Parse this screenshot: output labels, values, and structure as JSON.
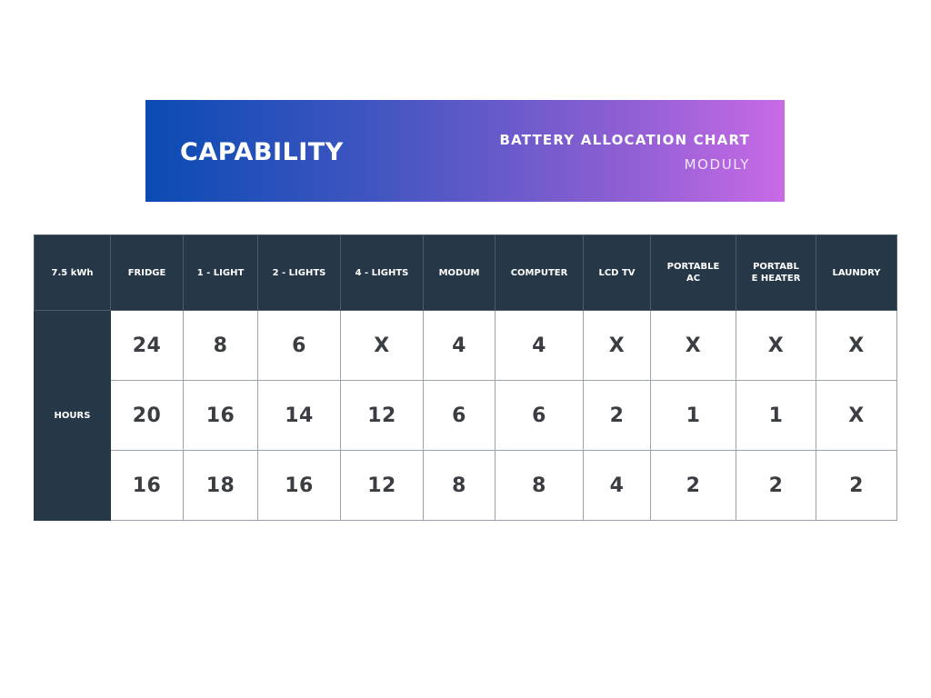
{
  "banner": {
    "title": "CAPABILITY",
    "subtitle": "BATTERY ALLOCATION CHART",
    "brand": "MODULY"
  },
  "table": {
    "corner_label": "7.5 kWh",
    "columns": [
      "FRIDGE",
      "1 - LIGHT",
      "2 - LIGHTS",
      "4 - LIGHTS",
      "MODUM",
      "COMPUTER",
      "LCD TV",
      "PORTABLE AC",
      "PORTABL E HEATER",
      "LAUNDRY"
    ],
    "row_label": "HOURS",
    "rows": [
      [
        "24",
        "8",
        "6",
        "X",
        "4",
        "4",
        "X",
        "X",
        "X",
        "X"
      ],
      [
        "20",
        "16",
        "14",
        "12",
        "6",
        "6",
        "2",
        "1",
        "1",
        "X"
      ],
      [
        "16",
        "18",
        "16",
        "12",
        "8",
        "8",
        "4",
        "2",
        "2",
        "2"
      ]
    ]
  },
  "colors": {
    "header_bg": "#263847",
    "gradient_start": "#0a4bb3",
    "gradient_end": "#c96ae6"
  }
}
